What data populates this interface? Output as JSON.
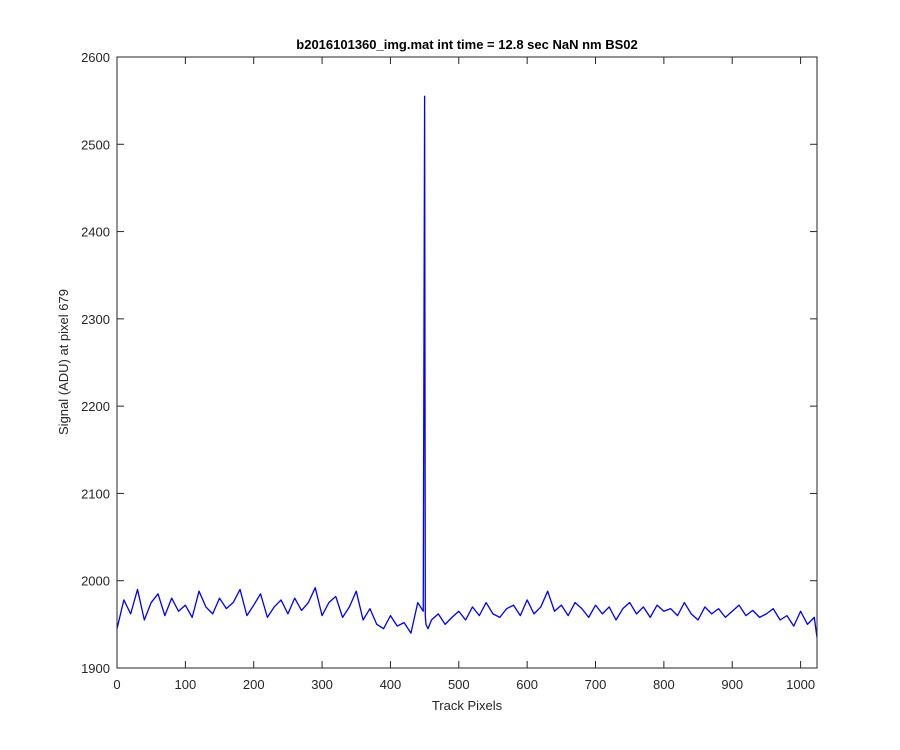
{
  "chart_data": {
    "type": "line",
    "title": "b2016101360_img.mat int time = 12.8 sec  NaN nm BS02",
    "xlabel": "Track Pixels",
    "ylabel": "Signal (ADU) at pixel 679",
    "xlim": [
      0,
      1024
    ],
    "ylim": [
      1900,
      2600
    ],
    "xticks": [
      0,
      100,
      200,
      300,
      400,
      500,
      600,
      700,
      800,
      900,
      1000
    ],
    "yticks": [
      1900,
      2000,
      2100,
      2200,
      2300,
      2400,
      2500,
      2600
    ],
    "grid": false,
    "legend": "none",
    "series": [
      {
        "color": "#0000ff",
        "x": [
          0,
          10,
          20,
          30,
          40,
          50,
          60,
          70,
          80,
          90,
          100,
          110,
          120,
          130,
          140,
          150,
          160,
          170,
          180,
          190,
          200,
          210,
          220,
          230,
          240,
          250,
          260,
          270,
          280,
          290,
          300,
          310,
          320,
          330,
          340,
          350,
          360,
          370,
          380,
          390,
          400,
          410,
          420,
          430,
          440,
          448,
          450,
          451,
          452,
          455,
          460,
          470,
          480,
          490,
          500,
          510,
          520,
          530,
          540,
          550,
          560,
          570,
          580,
          590,
          600,
          610,
          620,
          630,
          640,
          650,
          660,
          670,
          680,
          690,
          700,
          710,
          720,
          730,
          740,
          750,
          760,
          770,
          780,
          790,
          800,
          810,
          820,
          830,
          840,
          850,
          860,
          870,
          880,
          890,
          900,
          910,
          920,
          930,
          940,
          950,
          960,
          970,
          980,
          990,
          1000,
          1010,
          1020,
          1024
        ],
        "y": [
          1945,
          1978,
          1962,
          1990,
          1955,
          1975,
          1985,
          1960,
          1980,
          1965,
          1972,
          1958,
          1988,
          1970,
          1962,
          1980,
          1968,
          1975,
          1990,
          1960,
          1972,
          1985,
          1958,
          1970,
          1978,
          1962,
          1980,
          1966,
          1975,
          1992,
          1960,
          1975,
          1982,
          1958,
          1970,
          1988,
          1955,
          1968,
          1950,
          1945,
          1960,
          1948,
          1952,
          1940,
          1975,
          1965,
          2555,
          1960,
          1950,
          1945,
          1955,
          1962,
          1950,
          1958,
          1965,
          1955,
          1970,
          1960,
          1975,
          1962,
          1958,
          1968,
          1972,
          1960,
          1978,
          1962,
          1970,
          1988,
          1965,
          1972,
          1960,
          1975,
          1968,
          1958,
          1972,
          1962,
          1970,
          1955,
          1968,
          1975,
          1962,
          1970,
          1958,
          1972,
          1965,
          1968,
          1960,
          1975,
          1962,
          1955,
          1970,
          1962,
          1968,
          1958,
          1965,
          1972,
          1960,
          1966,
          1958,
          1962,
          1968,
          1955,
          1960,
          1948,
          1965,
          1950,
          1958,
          1935
        ]
      }
    ]
  }
}
